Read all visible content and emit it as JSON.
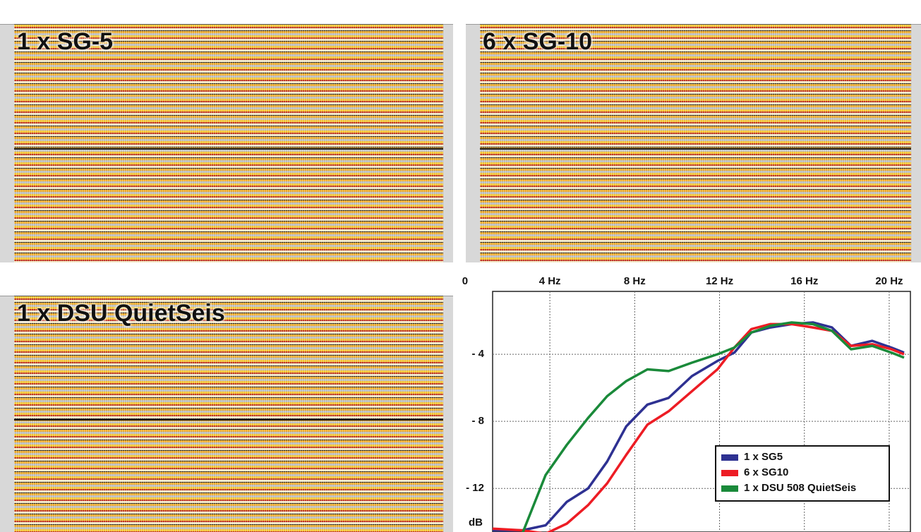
{
  "panels": [
    {
      "label": "1 x SG-5"
    },
    {
      "label": "6 x SG-10"
    },
    {
      "label": "1 x DSU QuietSeis"
    }
  ],
  "chart_data": {
    "type": "line",
    "x_label": "dB",
    "x": [
      1.3,
      2.7,
      3.8,
      4.8,
      5.8,
      6.7,
      7.6,
      8.6,
      9.6,
      10.7,
      11.9,
      12.7,
      13.5,
      14.4,
      15.4,
      16.4,
      17.3,
      18.2,
      19.2,
      20.1,
      20.7
    ],
    "series": [
      {
        "name": "1 x SG5",
        "color": "#2e3192",
        "values": [
          -14.5,
          -14.5,
          -14.2,
          -12.8,
          -12.0,
          -10.4,
          -8.3,
          -7.0,
          -6.6,
          -5.3,
          -4.4,
          -3.9,
          -2.7,
          -2.4,
          -2.2,
          -2.1,
          -2.4,
          -3.5,
          -3.2,
          -3.6,
          -3.9
        ]
      },
      {
        "name": "6 x SG10",
        "color": "#ed1c24",
        "values": [
          -14.4,
          -14.5,
          -14.7,
          -14.1,
          -13.0,
          -11.7,
          -10.0,
          -8.2,
          -7.4,
          -6.2,
          -4.9,
          -3.6,
          -2.5,
          -2.2,
          -2.2,
          -2.4,
          -2.6,
          -3.5,
          -3.4,
          -3.7,
          -4.0
        ]
      },
      {
        "name": "1 x DSU 508 QuietSeis",
        "color": "#1a8a3a",
        "values": [
          null,
          -14.7,
          -11.2,
          -9.4,
          -7.8,
          -6.5,
          -5.6,
          -4.9,
          -5.0,
          -4.5,
          -4.0,
          -3.6,
          -2.7,
          -2.3,
          -2.1,
          -2.2,
          -2.6,
          -3.7,
          -3.5,
          -3.9,
          -4.2
        ]
      }
    ],
    "xlim": [
      1.3,
      21
    ],
    "xticks": [
      0,
      {
        "value": 4,
        "label": "4 Hz"
      },
      {
        "value": 8,
        "label": "8 Hz"
      },
      {
        "value": 12,
        "label": "12 Hz"
      },
      {
        "value": 16,
        "label": "16 Hz"
      },
      {
        "value": 20,
        "label": "20 Hz"
      }
    ],
    "ylim": [
      -14.6,
      -0.25
    ],
    "yticks": [
      {
        "value": -4,
        "label": "- 4"
      },
      {
        "value": -8,
        "label": "- 8"
      },
      {
        "value": -12,
        "label": "- 12"
      }
    ],
    "grid": true,
    "legend": "lower right"
  }
}
